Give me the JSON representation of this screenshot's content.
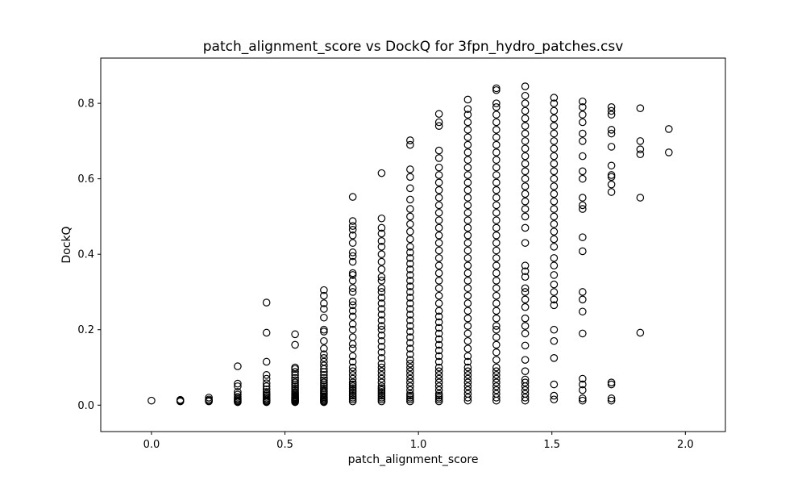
{
  "chart_data": {
    "type": "scatter",
    "title": "patch_alignment_score vs DockQ for 3fpn_hydro_patches.csv",
    "xlabel": "patch_alignment_score",
    "ylabel": "DockQ",
    "xlim": [
      -0.19,
      2.15
    ],
    "ylim": [
      -0.07,
      0.92
    ],
    "xticks": [
      {
        "value": 0.0,
        "label": "0.0"
      },
      {
        "value": 0.5,
        "label": "0.5"
      },
      {
        "value": 1.0,
        "label": "1.0"
      },
      {
        "value": 1.5,
        "label": "1.5"
      },
      {
        "value": 2.0,
        "label": "2.0"
      }
    ],
    "yticks": [
      {
        "value": 0.0,
        "label": "0.0"
      },
      {
        "value": 0.2,
        "label": "0.2"
      },
      {
        "value": 0.4,
        "label": "0.4"
      },
      {
        "value": 0.6,
        "label": "0.6"
      },
      {
        "value": 0.8,
        "label": "0.8"
      }
    ],
    "grid": false,
    "legend": false,
    "marker": {
      "shape": "open-circle",
      "color": "#000000"
    },
    "columns": [
      {
        "x": 0.0,
        "y": [
          0.012
        ]
      },
      {
        "x": 0.108,
        "y": [
          0.01,
          0.012,
          0.014
        ]
      },
      {
        "x": 0.215,
        "y": [
          0.01,
          0.012,
          0.015,
          0.02
        ]
      },
      {
        "x": 0.323,
        "y": [
          0.008,
          0.01,
          0.012,
          0.015,
          0.018,
          0.022,
          0.028,
          0.035,
          0.05,
          0.057,
          0.103
        ]
      },
      {
        "x": 0.431,
        "y": [
          0.008,
          0.01,
          0.012,
          0.015,
          0.018,
          0.022,
          0.026,
          0.03,
          0.035,
          0.042,
          0.05,
          0.058,
          0.07,
          0.08,
          0.115,
          0.192,
          0.272
        ]
      },
      {
        "x": 0.538,
        "y": [
          0.008,
          0.01,
          0.012,
          0.014,
          0.016,
          0.018,
          0.02,
          0.022,
          0.025,
          0.028,
          0.031,
          0.035,
          0.04,
          0.045,
          0.05,
          0.055,
          0.06,
          0.066,
          0.072,
          0.08,
          0.088,
          0.096,
          0.1,
          0.16,
          0.188
        ]
      },
      {
        "x": 0.646,
        "y": [
          0.008,
          0.01,
          0.012,
          0.015,
          0.018,
          0.021,
          0.024,
          0.028,
          0.032,
          0.036,
          0.04,
          0.045,
          0.05,
          0.055,
          0.06,
          0.066,
          0.072,
          0.08,
          0.088,
          0.096,
          0.105,
          0.115,
          0.125,
          0.135,
          0.15,
          0.17,
          0.195,
          0.2,
          0.232,
          0.255,
          0.27,
          0.29,
          0.305
        ]
      },
      {
        "x": 0.754,
        "y": [
          0.01,
          0.015,
          0.02,
          0.025,
          0.03,
          0.035,
          0.04,
          0.045,
          0.05,
          0.055,
          0.06,
          0.07,
          0.08,
          0.09,
          0.1,
          0.115,
          0.13,
          0.15,
          0.162,
          0.18,
          0.2,
          0.215,
          0.235,
          0.25,
          0.265,
          0.275,
          0.3,
          0.31,
          0.33,
          0.345,
          0.35,
          0.38,
          0.395,
          0.405,
          0.43,
          0.45,
          0.465,
          0.475,
          0.488,
          0.552
        ]
      },
      {
        "x": 0.862,
        "y": [
          0.01,
          0.015,
          0.02,
          0.025,
          0.03,
          0.035,
          0.04,
          0.045,
          0.05,
          0.06,
          0.07,
          0.08,
          0.09,
          0.1,
          0.11,
          0.125,
          0.14,
          0.155,
          0.17,
          0.185,
          0.2,
          0.21,
          0.225,
          0.24,
          0.255,
          0.27,
          0.285,
          0.3,
          0.31,
          0.33,
          0.34,
          0.36,
          0.38,
          0.4,
          0.42,
          0.435,
          0.455,
          0.47,
          0.495,
          0.615
        ]
      },
      {
        "x": 0.969,
        "y": [
          0.01,
          0.015,
          0.02,
          0.025,
          0.03,
          0.04,
          0.05,
          0.06,
          0.07,
          0.08,
          0.09,
          0.1,
          0.11,
          0.12,
          0.135,
          0.15,
          0.165,
          0.18,
          0.195,
          0.21,
          0.225,
          0.24,
          0.255,
          0.27,
          0.285,
          0.3,
          0.315,
          0.33,
          0.345,
          0.36,
          0.375,
          0.39,
          0.405,
          0.42,
          0.44,
          0.46,
          0.48,
          0.5,
          0.52,
          0.545,
          0.575,
          0.605,
          0.625,
          0.69,
          0.702
        ]
      },
      {
        "x": 1.077,
        "y": [
          0.01,
          0.015,
          0.02,
          0.025,
          0.03,
          0.04,
          0.05,
          0.06,
          0.07,
          0.08,
          0.09,
          0.1,
          0.115,
          0.13,
          0.145,
          0.16,
          0.175,
          0.19,
          0.205,
          0.22,
          0.235,
          0.25,
          0.27,
          0.29,
          0.31,
          0.33,
          0.35,
          0.37,
          0.39,
          0.41,
          0.43,
          0.45,
          0.47,
          0.49,
          0.51,
          0.53,
          0.55,
          0.57,
          0.59,
          0.61,
          0.63,
          0.655,
          0.675,
          0.74,
          0.75,
          0.772
        ]
      },
      {
        "x": 1.185,
        "y": [
          0.012,
          0.02,
          0.03,
          0.04,
          0.05,
          0.06,
          0.07,
          0.08,
          0.09,
          0.1,
          0.115,
          0.13,
          0.15,
          0.17,
          0.19,
          0.21,
          0.23,
          0.25,
          0.27,
          0.29,
          0.31,
          0.33,
          0.35,
          0.37,
          0.39,
          0.41,
          0.43,
          0.45,
          0.47,
          0.49,
          0.51,
          0.53,
          0.55,
          0.57,
          0.59,
          0.61,
          0.63,
          0.65,
          0.67,
          0.69,
          0.71,
          0.73,
          0.75,
          0.77,
          0.785,
          0.81
        ]
      },
      {
        "x": 1.292,
        "y": [
          0.012,
          0.02,
          0.03,
          0.04,
          0.05,
          0.06,
          0.07,
          0.08,
          0.09,
          0.1,
          0.12,
          0.14,
          0.16,
          0.18,
          0.2,
          0.21,
          0.23,
          0.25,
          0.27,
          0.29,
          0.31,
          0.33,
          0.35,
          0.37,
          0.39,
          0.41,
          0.43,
          0.45,
          0.47,
          0.49,
          0.51,
          0.53,
          0.55,
          0.57,
          0.59,
          0.61,
          0.63,
          0.65,
          0.67,
          0.69,
          0.71,
          0.73,
          0.75,
          0.77,
          0.79,
          0.8,
          0.835,
          0.84
        ]
      },
      {
        "x": 1.4,
        "y": [
          0.012,
          0.02,
          0.03,
          0.04,
          0.05,
          0.06,
          0.068,
          0.09,
          0.12,
          0.158,
          0.19,
          0.21,
          0.23,
          0.26,
          0.28,
          0.3,
          0.31,
          0.34,
          0.355,
          0.37,
          0.43,
          0.47,
          0.5,
          0.52,
          0.54,
          0.56,
          0.58,
          0.6,
          0.62,
          0.64,
          0.66,
          0.68,
          0.7,
          0.72,
          0.74,
          0.76,
          0.78,
          0.8,
          0.82,
          0.845
        ]
      },
      {
        "x": 1.508,
        "y": [
          0.015,
          0.025,
          0.055,
          0.125,
          0.17,
          0.2,
          0.265,
          0.28,
          0.3,
          0.32,
          0.345,
          0.37,
          0.39,
          0.42,
          0.44,
          0.46,
          0.48,
          0.5,
          0.52,
          0.54,
          0.56,
          0.58,
          0.6,
          0.62,
          0.64,
          0.66,
          0.68,
          0.7,
          0.72,
          0.74,
          0.76,
          0.78,
          0.8,
          0.815
        ]
      },
      {
        "x": 1.615,
        "y": [
          0.012,
          0.018,
          0.04,
          0.055,
          0.07,
          0.19,
          0.248,
          0.28,
          0.3,
          0.408,
          0.445,
          0.52,
          0.53,
          0.55,
          0.6,
          0.62,
          0.66,
          0.7,
          0.72,
          0.75,
          0.77,
          0.79,
          0.805
        ]
      },
      {
        "x": 1.723,
        "y": [
          0.012,
          0.018,
          0.055,
          0.06,
          0.565,
          0.585,
          0.605,
          0.61,
          0.635,
          0.685,
          0.72,
          0.73,
          0.77,
          0.78,
          0.79
        ]
      },
      {
        "x": 1.831,
        "y": [
          0.192,
          0.55,
          0.665,
          0.678,
          0.7,
          0.787
        ]
      },
      {
        "x": 1.938,
        "y": [
          0.67,
          0.732
        ]
      }
    ]
  }
}
